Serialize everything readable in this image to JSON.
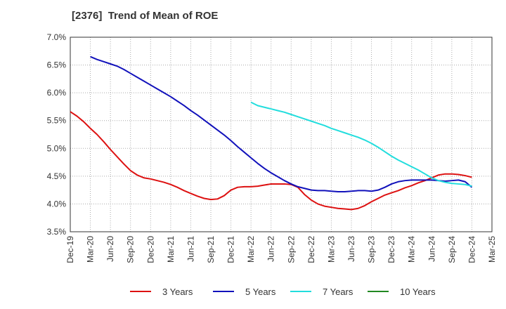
{
  "chart_data": {
    "type": "line",
    "title": "[2376]  Trend of Mean of ROE",
    "ylim": [
      3.5,
      7.0
    ],
    "y_ticks": [
      "7.0%",
      "6.5%",
      "6.0%",
      "5.5%",
      "5.0%",
      "4.5%",
      "4.0%",
      "3.5%"
    ],
    "x_ticks": [
      "Dec-19",
      "Mar-20",
      "Jun-20",
      "Sep-20",
      "Dec-20",
      "Mar-21",
      "Jun-21",
      "Sep-21",
      "Dec-21",
      "Mar-22",
      "Jun-22",
      "Sep-22",
      "Dec-22",
      "Mar-23",
      "Jun-23",
      "Sep-23",
      "Dec-23",
      "Mar-24",
      "Jun-24",
      "Sep-24",
      "Dec-24",
      "Mar-25"
    ],
    "grid": true,
    "legend_position": "bottom",
    "series": [
      {
        "name": "3 Years",
        "color": "#dd1111",
        "points": [
          [
            "Dec-19",
            5.66
          ],
          [
            "Jan-20",
            5.58
          ],
          [
            "Feb-20",
            5.48
          ],
          [
            "Mar-20",
            5.36
          ],
          [
            "Apr-20",
            5.25
          ],
          [
            "May-20",
            5.12
          ],
          [
            "Jun-20",
            4.98
          ],
          [
            "Jul-20",
            4.85
          ],
          [
            "Aug-20",
            4.72
          ],
          [
            "Sep-20",
            4.6
          ],
          [
            "Oct-20",
            4.52
          ],
          [
            "Nov-20",
            4.47
          ],
          [
            "Dec-20",
            4.45
          ],
          [
            "Jan-21",
            4.42
          ],
          [
            "Feb-21",
            4.39
          ],
          [
            "Mar-21",
            4.35
          ],
          [
            "Apr-21",
            4.3
          ],
          [
            "May-21",
            4.24
          ],
          [
            "Jun-21",
            4.19
          ],
          [
            "Jul-21",
            4.14
          ],
          [
            "Aug-21",
            4.1
          ],
          [
            "Sep-21",
            4.08
          ],
          [
            "Oct-21",
            4.09
          ],
          [
            "Nov-21",
            4.15
          ],
          [
            "Dec-21",
            4.25
          ],
          [
            "Jan-22",
            4.3
          ],
          [
            "Feb-22",
            4.31
          ],
          [
            "Mar-22",
            4.31
          ],
          [
            "Apr-22",
            4.32
          ],
          [
            "May-22",
            4.34
          ],
          [
            "Jun-22",
            4.36
          ],
          [
            "Jul-22",
            4.36
          ],
          [
            "Aug-22",
            4.36
          ],
          [
            "Sep-22",
            4.35
          ],
          [
            "Oct-22",
            4.3
          ],
          [
            "Nov-22",
            4.17
          ],
          [
            "Dec-22",
            4.07
          ],
          [
            "Jan-23",
            4.0
          ],
          [
            "Feb-23",
            3.96
          ],
          [
            "Mar-23",
            3.94
          ],
          [
            "Apr-23",
            3.92
          ],
          [
            "May-23",
            3.91
          ],
          [
            "Jun-23",
            3.9
          ],
          [
            "Jul-23",
            3.92
          ],
          [
            "Aug-23",
            3.97
          ],
          [
            "Sep-23",
            4.04
          ],
          [
            "Oct-23",
            4.1
          ],
          [
            "Nov-23",
            4.16
          ],
          [
            "Dec-23",
            4.2
          ],
          [
            "Jan-24",
            4.24
          ],
          [
            "Feb-24",
            4.29
          ],
          [
            "Mar-24",
            4.33
          ],
          [
            "Apr-24",
            4.38
          ],
          [
            "May-24",
            4.42
          ],
          [
            "Jun-24",
            4.47
          ],
          [
            "Jul-24",
            4.52
          ],
          [
            "Aug-24",
            4.54
          ],
          [
            "Sep-24",
            4.54
          ],
          [
            "Oct-24",
            4.53
          ],
          [
            "Nov-24",
            4.51
          ],
          [
            "Dec-24",
            4.48
          ]
        ]
      },
      {
        "name": "5 Years",
        "color": "#1111bb",
        "points": [
          [
            "Mar-20",
            6.65
          ],
          [
            "Apr-20",
            6.6
          ],
          [
            "May-20",
            6.56
          ],
          [
            "Jun-20",
            6.52
          ],
          [
            "Jul-20",
            6.48
          ],
          [
            "Aug-20",
            6.42
          ],
          [
            "Sep-20",
            6.35
          ],
          [
            "Oct-20",
            6.28
          ],
          [
            "Nov-20",
            6.21
          ],
          [
            "Dec-20",
            6.14
          ],
          [
            "Jan-21",
            6.07
          ],
          [
            "Feb-21",
            6.0
          ],
          [
            "Mar-21",
            5.93
          ],
          [
            "Apr-21",
            5.85
          ],
          [
            "May-21",
            5.77
          ],
          [
            "Jun-21",
            5.68
          ],
          [
            "Jul-21",
            5.6
          ],
          [
            "Aug-21",
            5.51
          ],
          [
            "Sep-21",
            5.42
          ],
          [
            "Oct-21",
            5.33
          ],
          [
            "Nov-21",
            5.24
          ],
          [
            "Dec-21",
            5.14
          ],
          [
            "Jan-22",
            5.03
          ],
          [
            "Feb-22",
            4.93
          ],
          [
            "Mar-22",
            4.83
          ],
          [
            "Apr-22",
            4.73
          ],
          [
            "May-22",
            4.64
          ],
          [
            "Jun-22",
            4.56
          ],
          [
            "Jul-22",
            4.49
          ],
          [
            "Aug-22",
            4.42
          ],
          [
            "Sep-22",
            4.36
          ],
          [
            "Oct-22",
            4.31
          ],
          [
            "Nov-22",
            4.28
          ],
          [
            "Dec-22",
            4.25
          ],
          [
            "Jan-23",
            4.24
          ],
          [
            "Feb-23",
            4.24
          ],
          [
            "Mar-23",
            4.23
          ],
          [
            "Apr-23",
            4.22
          ],
          [
            "May-23",
            4.22
          ],
          [
            "Jun-23",
            4.23
          ],
          [
            "Jul-23",
            4.24
          ],
          [
            "Aug-23",
            4.24
          ],
          [
            "Sep-23",
            4.23
          ],
          [
            "Oct-23",
            4.25
          ],
          [
            "Nov-23",
            4.3
          ],
          [
            "Dec-23",
            4.36
          ],
          [
            "Jan-24",
            4.4
          ],
          [
            "Feb-24",
            4.42
          ],
          [
            "Mar-24",
            4.43
          ],
          [
            "Apr-24",
            4.43
          ],
          [
            "May-24",
            4.43
          ],
          [
            "Jun-24",
            4.43
          ],
          [
            "Jul-24",
            4.42
          ],
          [
            "Aug-24",
            4.41
          ],
          [
            "Sep-24",
            4.42
          ],
          [
            "Oct-24",
            4.43
          ],
          [
            "Nov-24",
            4.4
          ],
          [
            "Dec-24",
            4.3
          ]
        ]
      },
      {
        "name": "7 Years",
        "color": "#22dddd",
        "points": [
          [
            "Mar-22",
            5.83
          ],
          [
            "Apr-22",
            5.77
          ],
          [
            "May-22",
            5.74
          ],
          [
            "Jun-22",
            5.71
          ],
          [
            "Jul-22",
            5.68
          ],
          [
            "Aug-22",
            5.65
          ],
          [
            "Sep-22",
            5.61
          ],
          [
            "Oct-22",
            5.57
          ],
          [
            "Nov-22",
            5.53
          ],
          [
            "Dec-22",
            5.49
          ],
          [
            "Jan-23",
            5.45
          ],
          [
            "Feb-23",
            5.41
          ],
          [
            "Mar-23",
            5.36
          ],
          [
            "Apr-23",
            5.32
          ],
          [
            "May-23",
            5.28
          ],
          [
            "Jun-23",
            5.24
          ],
          [
            "Jul-23",
            5.2
          ],
          [
            "Aug-23",
            5.15
          ],
          [
            "Sep-23",
            5.09
          ],
          [
            "Oct-23",
            5.02
          ],
          [
            "Nov-23",
            4.94
          ],
          [
            "Dec-23",
            4.86
          ],
          [
            "Jan-24",
            4.79
          ],
          [
            "Feb-24",
            4.73
          ],
          [
            "Mar-24",
            4.67
          ],
          [
            "Apr-24",
            4.61
          ],
          [
            "May-24",
            4.54
          ],
          [
            "Jun-24",
            4.47
          ],
          [
            "Jul-24",
            4.42
          ],
          [
            "Aug-24",
            4.39
          ],
          [
            "Sep-24",
            4.37
          ],
          [
            "Oct-24",
            4.36
          ],
          [
            "Nov-24",
            4.35
          ],
          [
            "Dec-24",
            4.32
          ]
        ]
      },
      {
        "name": "10 Years",
        "color": "#228822",
        "points": []
      }
    ]
  }
}
